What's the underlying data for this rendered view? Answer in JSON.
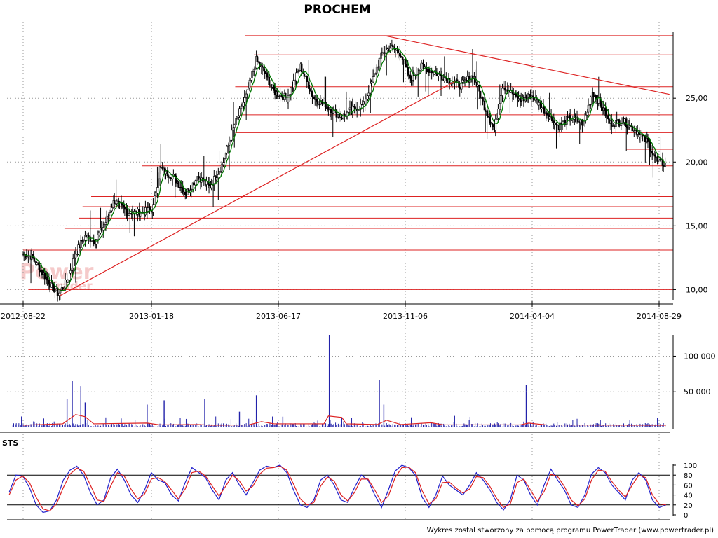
{
  "footer": "Wykres został stworzony za pomocą programu PowerTrader (www.powertrader.pl)",
  "watermark": {
    "main": "Power",
    "sub": "Trader"
  },
  "colors": {
    "candle": "#000000",
    "ma": "#007700",
    "support": "#dd2222",
    "volume": "#2222aa",
    "volume_ma": "#dd2222",
    "sts_k": "#2222cc",
    "sts_d": "#dd2222",
    "grid": "#999999"
  },
  "chart_data": [
    {
      "type": "candlestick",
      "title": "PROCHEM",
      "x_ticks": [
        "2012-08-22",
        "2013-01-18",
        "2013-06-17",
        "2013-11-06",
        "2014-04-04",
        "2014-08-29"
      ],
      "y_ticks": [
        "10,00",
        "15,00",
        "20,00",
        "25,00"
      ],
      "ylim": [
        9.2,
        30.5
      ],
      "grid": true,
      "price_keypoints": [
        [
          "2012-08-22",
          12.8
        ],
        [
          "2012-09-01",
          12.6
        ],
        [
          "2012-09-12",
          11.5
        ],
        [
          "2012-09-25",
          10.2
        ],
        [
          "2012-10-02",
          9.7
        ],
        [
          "2012-10-12",
          10.6
        ],
        [
          "2012-10-22",
          12.8
        ],
        [
          "2012-11-02",
          14.2
        ],
        [
          "2012-11-14",
          13.8
        ],
        [
          "2012-11-26",
          15.3
        ],
        [
          "2012-12-06",
          17.0
        ],
        [
          "2012-12-20",
          16.1
        ],
        [
          "2013-01-05",
          16.0
        ],
        [
          "2013-01-20",
          16.3
        ],
        [
          "2013-01-28",
          19.5
        ],
        [
          "2013-02-14",
          18.8
        ],
        [
          "2013-02-28",
          17.5
        ],
        [
          "2013-03-14",
          18.9
        ],
        [
          "2013-03-28",
          18.0
        ],
        [
          "2013-04-12",
          19.8
        ],
        [
          "2013-04-27",
          23.0
        ],
        [
          "2013-05-12",
          25.5
        ],
        [
          "2013-05-22",
          28.0
        ],
        [
          "2013-06-01",
          27.0
        ],
        [
          "2013-06-12",
          25.5
        ],
        [
          "2013-06-27",
          25.0
        ],
        [
          "2013-07-12",
          27.5
        ],
        [
          "2013-07-27",
          25.0
        ],
        [
          "2013-08-12",
          24.3
        ],
        [
          "2013-08-27",
          23.5
        ],
        [
          "2013-09-06",
          24.0
        ],
        [
          "2013-09-21",
          24.5
        ],
        [
          "2013-10-01",
          26.5
        ],
        [
          "2013-10-11",
          28.5
        ],
        [
          "2013-10-21",
          29.0
        ],
        [
          "2013-11-01",
          28.5
        ],
        [
          "2013-11-11",
          26.5
        ],
        [
          "2013-11-26",
          27.5
        ],
        [
          "2013-12-11",
          27.0
        ],
        [
          "2013-12-26",
          26.5
        ],
        [
          "2014-01-10",
          26.0
        ],
        [
          "2014-01-25",
          26.8
        ],
        [
          "2014-02-09",
          24.0
        ],
        [
          "2014-02-19",
          22.5
        ],
        [
          "2014-02-28",
          26.0
        ],
        [
          "2014-03-10",
          25.5
        ],
        [
          "2014-03-20",
          24.8
        ],
        [
          "2014-04-04",
          25.2
        ],
        [
          "2014-04-19",
          24.0
        ],
        [
          "2014-05-04",
          22.8
        ],
        [
          "2014-05-19",
          23.5
        ],
        [
          "2014-06-03",
          23.0
        ],
        [
          "2014-06-13",
          25.5
        ],
        [
          "2014-06-23",
          24.5
        ],
        [
          "2014-07-03",
          23.0
        ],
        [
          "2014-07-18",
          23.2
        ],
        [
          "2014-08-02",
          22.5
        ],
        [
          "2014-08-17",
          21.5
        ],
        [
          "2014-08-27",
          20.0
        ],
        [
          "2014-09-06",
          19.8
        ]
      ],
      "support_lines": [
        {
          "start": "2013-05-09",
          "level": 29.9
        },
        {
          "start": "2013-05-19",
          "level": 28.4
        },
        {
          "start": "2013-04-27",
          "level": 25.9
        },
        {
          "start": "2013-05-01",
          "level": 23.7
        },
        {
          "start": "2013-04-27",
          "level": 22.3
        },
        {
          "start": "2014-07-22",
          "level": 21.0
        },
        {
          "start": "2013-01-07",
          "level": 19.7
        },
        {
          "start": "2012-11-09",
          "level": 17.3
        },
        {
          "start": "2012-10-30",
          "level": 16.5
        },
        {
          "start": "2012-10-26",
          "level": 15.6
        },
        {
          "start": "2012-10-09",
          "level": 14.8
        },
        {
          "start": "2012-08-22",
          "level": 13.1
        },
        {
          "start": "2012-08-28",
          "level": 10.0
        }
      ],
      "trend_lines": [
        {
          "from": [
            "2012-10-03",
            9.5
          ],
          "to": [
            "2014-01-03",
            26.3
          ]
        },
        {
          "from": [
            "2013-10-14",
            29.9
          ],
          "to": [
            "2014-09-10",
            25.3
          ]
        }
      ]
    },
    {
      "type": "bar",
      "title": "",
      "y_ticks": [
        "50 000",
        "100 000"
      ],
      "ylim": [
        0,
        130000
      ],
      "spikes": [
        [
          "2012-10-18",
          65000
        ],
        [
          "2012-10-28",
          58000
        ],
        [
          "2012-11-02",
          35000
        ],
        [
          "2012-10-12",
          40000
        ],
        [
          "2013-01-13",
          32000
        ],
        [
          "2013-02-02",
          38000
        ],
        [
          "2013-03-22",
          40000
        ],
        [
          "2013-05-22",
          45000
        ],
        [
          "2013-05-02",
          22000
        ],
        [
          "2013-08-13",
          130000
        ],
        [
          "2013-10-08",
          66000
        ],
        [
          "2013-10-13",
          32000
        ],
        [
          "2014-03-28",
          60000
        ],
        [
          "2013-06-22",
          15000
        ]
      ],
      "volume_ma_keypoints": [
        [
          "2012-08-22",
          3000
        ],
        [
          "2012-10-07",
          5000
        ],
        [
          "2012-10-22",
          18000
        ],
        [
          "2012-11-02",
          15000
        ],
        [
          "2012-11-12",
          5000
        ],
        [
          "2013-01-13",
          6000
        ],
        [
          "2013-01-28",
          3500
        ],
        [
          "2013-03-14",
          4000
        ],
        [
          "2013-03-29",
          3000
        ],
        [
          "2013-05-13",
          3500
        ],
        [
          "2013-05-28",
          8000
        ],
        [
          "2013-06-12",
          5000
        ],
        [
          "2013-08-07",
          5000
        ],
        [
          "2013-08-12",
          16000
        ],
        [
          "2013-08-27",
          14000
        ],
        [
          "2013-09-01",
          5000
        ],
        [
          "2013-10-06",
          4000
        ],
        [
          "2013-10-16",
          10000
        ],
        [
          "2013-11-01",
          4000
        ],
        [
          "2013-12-06",
          6500
        ],
        [
          "2013-12-21",
          3500
        ],
        [
          "2014-03-21",
          3500
        ],
        [
          "2014-03-31",
          6000
        ],
        [
          "2014-04-20",
          3500
        ],
        [
          "2014-09-06",
          3000
        ]
      ]
    },
    {
      "type": "line",
      "title": "STS",
      "y_ticks": [
        "0",
        "20",
        "40",
        "60",
        "80",
        "100"
      ],
      "ylim": [
        0,
        100
      ],
      "reference_levels": [
        20,
        80
      ],
      "series": [
        {
          "name": "",
          "role": "%K",
          "values": [
            45,
            80,
            78,
            55,
            20,
            5,
            8,
            30,
            70,
            90,
            98,
            80,
            45,
            20,
            30,
            75,
            92,
            70,
            40,
            25,
            50,
            85,
            70,
            65,
            40,
            28,
            65,
            95,
            85,
            75,
            50,
            30,
            70,
            85,
            60,
            40,
            65,
            90,
            98,
            95,
            100,
            85,
            50,
            20,
            15,
            30,
            70,
            80,
            60,
            30,
            25,
            55,
            80,
            70,
            40,
            15,
            50,
            88,
            100,
            95,
            80,
            35,
            15,
            40,
            78,
            60,
            50,
            40,
            60,
            85,
            70,
            50,
            25,
            10,
            30,
            80,
            70,
            40,
            20,
            60,
            92,
            70,
            50,
            20,
            15,
            40,
            82,
            95,
            85,
            60,
            45,
            30,
            70,
            85,
            70,
            30,
            15,
            20
          ]
        },
        {
          "name": "",
          "role": "%D",
          "values": [
            40,
            70,
            78,
            65,
            35,
            12,
            8,
            22,
            55,
            82,
            94,
            88,
            60,
            30,
            27,
            58,
            85,
            78,
            52,
            32,
            42,
            72,
            75,
            67,
            50,
            32,
            52,
            85,
            88,
            78,
            58,
            38,
            58,
            80,
            68,
            48,
            58,
            82,
            94,
            95,
            98,
            90,
            62,
            32,
            20,
            25,
            58,
            76,
            68,
            40,
            28,
            45,
            72,
            72,
            50,
            25,
            38,
            75,
            95,
            96,
            85,
            48,
            22,
            32,
            65,
            66,
            54,
            44,
            52,
            77,
            75,
            57,
            33,
            15,
            22,
            65,
            72,
            50,
            27,
            47,
            82,
            77,
            57,
            30,
            18,
            32,
            70,
            90,
            88,
            67,
            50,
            36,
            60,
            80,
            75,
            40,
            22,
            20
          ]
        }
      ]
    }
  ]
}
